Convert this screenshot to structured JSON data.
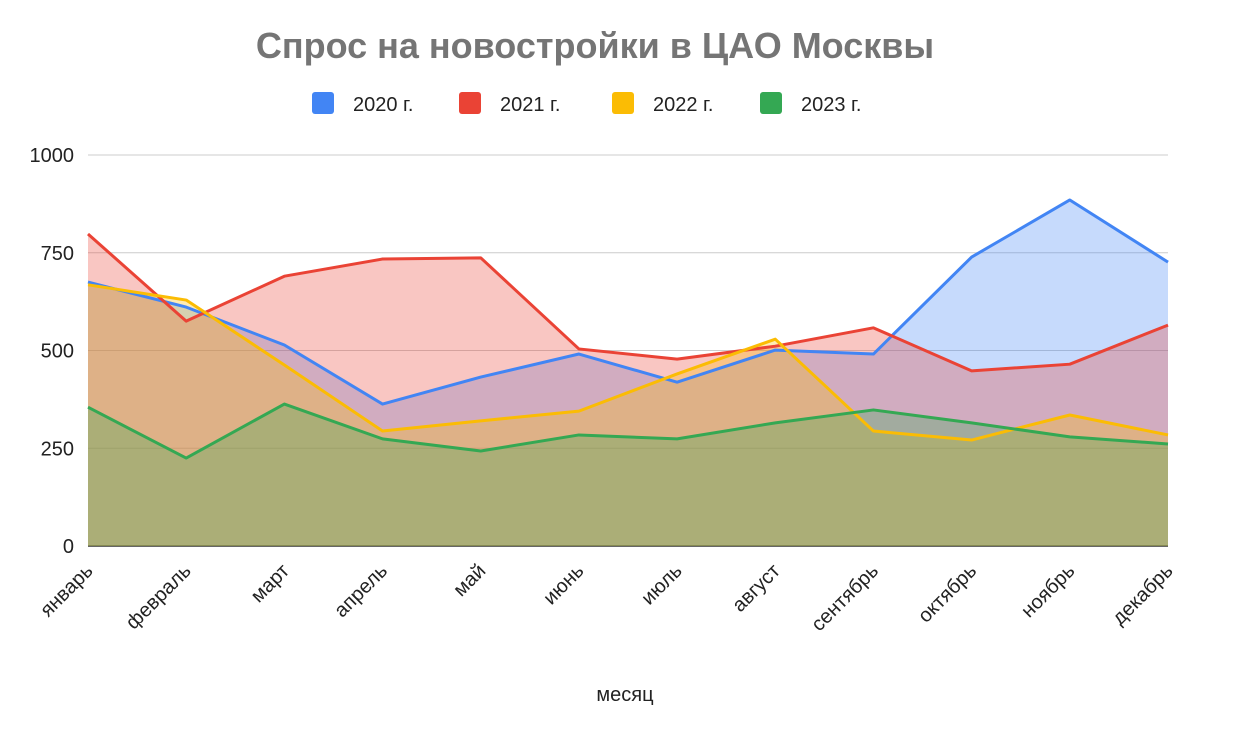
{
  "chart_data": {
    "type": "area",
    "title": "Спрос на новостройки в ЦАО Москвы",
    "xlabel": "месяц",
    "ylabel": "",
    "ylim": [
      0,
      1000
    ],
    "yticks": [
      "0",
      "250",
      "500",
      "750",
      "1000"
    ],
    "ytick_values": [
      0,
      250,
      500,
      750,
      1000
    ],
    "grid": true,
    "legend_position": "top",
    "categories": [
      "январь",
      "февраль",
      "март",
      "апрель",
      "май",
      "июнь",
      "июль",
      "август",
      "сентябрь",
      "октябрь",
      "ноябрь",
      "декабрь"
    ],
    "series": [
      {
        "name": "2020 г.",
        "color": "#4285f4",
        "values": [
          675,
          611,
          514,
          363,
          432,
          491,
          419,
          501,
          491,
          739,
          885,
          726
        ]
      },
      {
        "name": "2021 г.",
        "color": "#ea4335",
        "values": [
          798,
          575,
          690,
          734,
          737,
          504,
          478,
          511,
          558,
          448,
          465,
          565
        ]
      },
      {
        "name": "2022 г.",
        "color": "#fbbc04",
        "values": [
          668,
          629,
          463,
          294,
          320,
          345,
          440,
          529,
          294,
          271,
          335,
          284
        ]
      },
      {
        "name": "2023 г.",
        "color": "#34a853",
        "values": [
          355,
          225,
          363,
          274,
          243,
          284,
          274,
          315,
          348,
          315,
          279,
          261
        ]
      }
    ]
  }
}
